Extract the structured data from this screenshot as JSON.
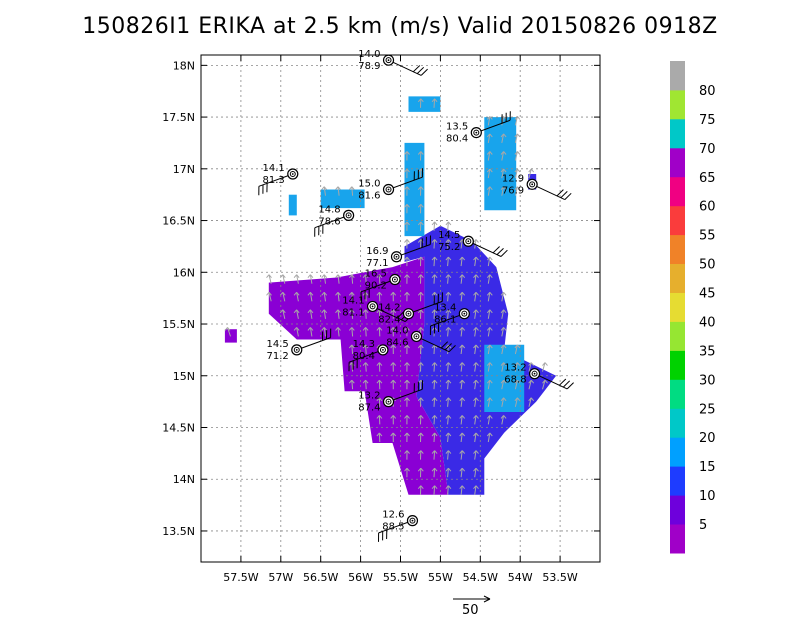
{
  "chart_data": {
    "type": "map",
    "title": "150826I1 ERIKA at 2.5 km (m/s) Valid 20150826 0918Z",
    "xlim": [
      -58.0,
      -53.0
    ],
    "ylim": [
      13.2,
      18.1
    ],
    "x_ticks": [
      {
        "value": -57.5,
        "label": "57.5W"
      },
      {
        "value": -57.0,
        "label": "57W"
      },
      {
        "value": -56.5,
        "label": "56.5W"
      },
      {
        "value": -56.0,
        "label": "56W"
      },
      {
        "value": -55.5,
        "label": "55.5W"
      },
      {
        "value": -55.0,
        "label": "55W"
      },
      {
        "value": -54.5,
        "label": "54.5W"
      },
      {
        "value": -54.0,
        "label": "54W"
      },
      {
        "value": -53.5,
        "label": "53.5W"
      }
    ],
    "y_ticks": [
      {
        "value": 13.5,
        "label": "13.5N"
      },
      {
        "value": 14.0,
        "label": "14N"
      },
      {
        "value": 14.5,
        "label": "14.5N"
      },
      {
        "value": 15.0,
        "label": "15N"
      },
      {
        "value": 15.5,
        "label": "15.5N"
      },
      {
        "value": 16.0,
        "label": "16N"
      },
      {
        "value": 16.5,
        "label": "16.5N"
      },
      {
        "value": 17.0,
        "label": "17N"
      },
      {
        "value": 17.5,
        "label": "17.5N"
      },
      {
        "value": 18.0,
        "label": "18N"
      }
    ],
    "grid": true,
    "colorbar": {
      "levels": [
        0,
        5,
        10,
        15,
        20,
        25,
        30,
        35,
        40,
        45,
        50,
        55,
        60,
        65,
        70,
        75,
        80,
        85
      ],
      "labels": [
        "5",
        "10",
        "15",
        "20",
        "25",
        "30",
        "35",
        "40",
        "45",
        "50",
        "55",
        "60",
        "65",
        "70",
        "75",
        "80"
      ],
      "colors": [
        "#a000c8",
        "#6e00dc",
        "#1e3cff",
        "#00a0ff",
        "#00c8c8",
        "#00dc82",
        "#00d200",
        "#96e632",
        "#e6dc32",
        "#e6af2d",
        "#f08228",
        "#fa3c3c",
        "#f00082",
        "#a000c8",
        "#00c8c8",
        "#a0e632",
        "#aaaaaa"
      ]
    },
    "vector_scale_label": "50",
    "shading_regions": [
      {
        "level": 5,
        "color": "#8a00d4",
        "polygon": [
          [
            -57.15,
            15.9
          ],
          [
            -56.3,
            15.95
          ],
          [
            -55.6,
            16.05
          ],
          [
            -55.2,
            16.15
          ],
          [
            -55.2,
            15.5
          ],
          [
            -55.3,
            14.8
          ],
          [
            -55.0,
            14.4
          ],
          [
            -54.9,
            13.85
          ],
          [
            -55.4,
            13.85
          ],
          [
            -55.6,
            14.35
          ],
          [
            -55.85,
            14.35
          ],
          [
            -55.95,
            14.85
          ],
          [
            -56.2,
            14.85
          ],
          [
            -56.25,
            15.35
          ],
          [
            -56.8,
            15.35
          ],
          [
            -57.15,
            15.6
          ]
        ]
      },
      {
        "level": 5,
        "color": "#8a00d4",
        "polygon": [
          [
            -57.7,
            15.45
          ],
          [
            -57.55,
            15.45
          ],
          [
            -57.55,
            15.32
          ],
          [
            -57.7,
            15.32
          ]
        ]
      },
      {
        "level": 10,
        "color": "#3a2ae6",
        "polygon": [
          [
            -55.45,
            16.25
          ],
          [
            -55.0,
            16.45
          ],
          [
            -54.6,
            16.3
          ],
          [
            -54.3,
            16.05
          ],
          [
            -54.15,
            15.6
          ],
          [
            -54.2,
            15.25
          ],
          [
            -53.95,
            15.15
          ],
          [
            -53.55,
            15.0
          ],
          [
            -53.8,
            14.75
          ],
          [
            -54.2,
            14.45
          ],
          [
            -54.45,
            14.2
          ],
          [
            -54.45,
            13.85
          ],
          [
            -54.9,
            13.85
          ],
          [
            -55.0,
            14.4
          ],
          [
            -55.3,
            14.8
          ],
          [
            -55.2,
            15.5
          ],
          [
            -55.2,
            16.15
          ],
          [
            -55.45,
            16.1
          ]
        ]
      },
      {
        "level": 15,
        "color": "#18a4ec",
        "polygon": [
          [
            -55.4,
            17.7
          ],
          [
            -55.0,
            17.7
          ],
          [
            -55.0,
            17.55
          ],
          [
            -55.4,
            17.55
          ]
        ]
      },
      {
        "level": 15,
        "color": "#18a4ec",
        "polygon": [
          [
            -55.45,
            17.25
          ],
          [
            -55.2,
            17.25
          ],
          [
            -55.2,
            16.35
          ],
          [
            -55.45,
            16.35
          ]
        ]
      },
      {
        "level": 15,
        "color": "#18a4ec",
        "polygon": [
          [
            -56.5,
            16.8
          ],
          [
            -55.95,
            16.8
          ],
          [
            -55.95,
            16.62
          ],
          [
            -56.5,
            16.62
          ]
        ]
      },
      {
        "level": 15,
        "color": "#18a4ec",
        "polygon": [
          [
            -54.45,
            17.5
          ],
          [
            -54.05,
            17.5
          ],
          [
            -54.05,
            16.6
          ],
          [
            -54.45,
            16.6
          ]
        ]
      },
      {
        "level": 15,
        "color": "#18a4ec",
        "polygon": [
          [
            -54.45,
            15.3
          ],
          [
            -53.95,
            15.3
          ],
          [
            -53.95,
            14.65
          ],
          [
            -54.45,
            14.65
          ]
        ]
      },
      {
        "level": 15,
        "color": "#18a4ec",
        "polygon": [
          [
            -56.9,
            16.75
          ],
          [
            -56.8,
            16.75
          ],
          [
            -56.8,
            16.55
          ],
          [
            -56.9,
            16.55
          ]
        ]
      },
      {
        "level": 10,
        "color": "#3a2ae6",
        "polygon": [
          [
            -53.9,
            16.95
          ],
          [
            -53.8,
            16.95
          ],
          [
            -53.8,
            16.8
          ],
          [
            -53.9,
            16.8
          ]
        ]
      }
    ],
    "stations": [
      {
        "lon": -55.65,
        "lat": 18.05,
        "value1": "14.0",
        "value2": "78.9"
      },
      {
        "lon": -54.55,
        "lat": 17.35,
        "value1": "13.5",
        "value2": "80.4"
      },
      {
        "lon": -56.85,
        "lat": 16.95,
        "value1": "14.1",
        "value2": "81.3"
      },
      {
        "lon": -53.85,
        "lat": 16.85,
        "value1": "12.9",
        "value2": "76.9"
      },
      {
        "lon": -55.65,
        "lat": 16.8,
        "value1": "15.0",
        "value2": "81.6"
      },
      {
        "lon": -56.15,
        "lat": 16.55,
        "value1": "14.8",
        "value2": "78.6"
      },
      {
        "lon": -54.65,
        "lat": 16.3,
        "value1": "14.5",
        "value2": "75.2"
      },
      {
        "lon": -55.55,
        "lat": 16.15,
        "value1": "16.9",
        "value2": "77.1"
      },
      {
        "lon": -55.57,
        "lat": 15.93,
        "value1": "16.5",
        "value2": "90.2"
      },
      {
        "lon": -55.85,
        "lat": 15.67,
        "value1": "14.1",
        "value2": "81.1"
      },
      {
        "lon": -55.4,
        "lat": 15.6,
        "value1": "14.2",
        "value2": "82.4"
      },
      {
        "lon": -54.7,
        "lat": 15.6,
        "value1": "13.4",
        "value2": "86.1"
      },
      {
        "lon": -55.3,
        "lat": 15.38,
        "value1": "14.0",
        "value2": "84.6"
      },
      {
        "lon": -56.8,
        "lat": 15.25,
        "value1": "14.5",
        "value2": "71.2"
      },
      {
        "lon": -55.72,
        "lat": 15.25,
        "value1": "14.3",
        "value2": "80.4"
      },
      {
        "lon": -53.82,
        "lat": 15.02,
        "value1": "13.2",
        "value2": "68.8"
      },
      {
        "lon": -55.65,
        "lat": 14.75,
        "value1": "13.2",
        "value2": "87.4"
      },
      {
        "lon": -55.35,
        "lat": 13.6,
        "value1": "12.6",
        "value2": "88.5"
      }
    ]
  }
}
